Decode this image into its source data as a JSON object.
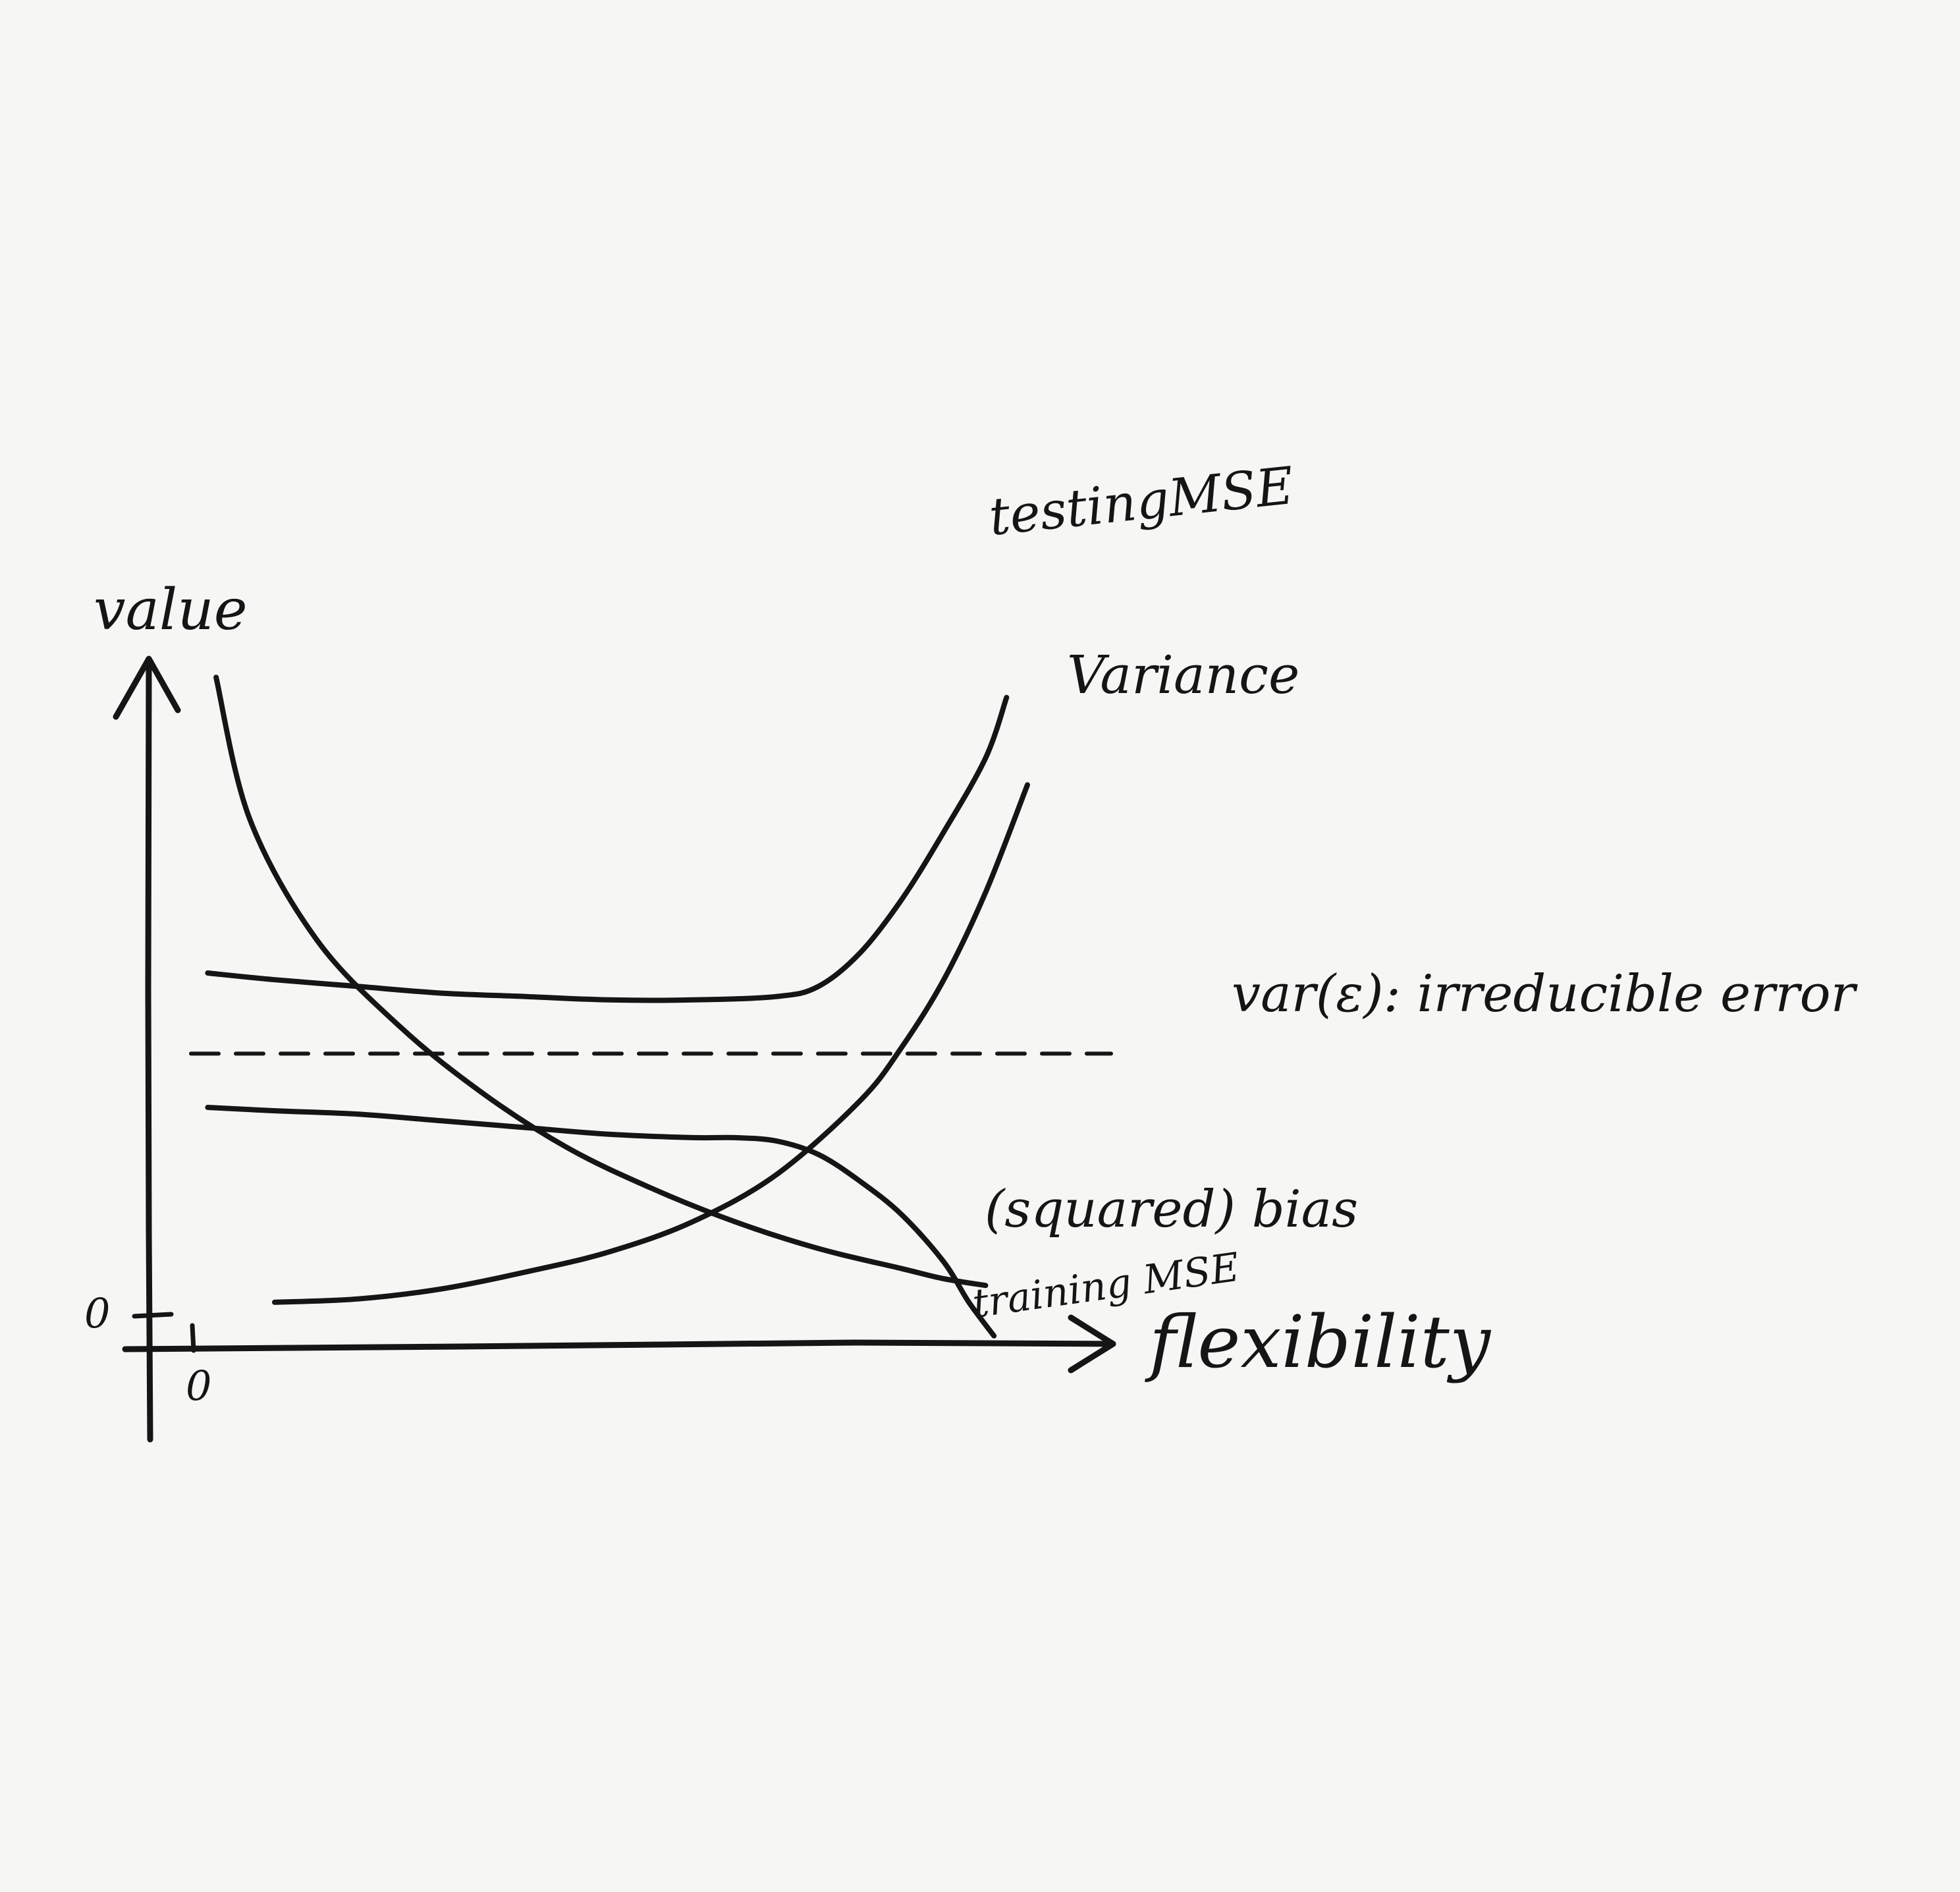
{
  "chart_data": {
    "type": "line",
    "title": "",
    "xlabel": "flexibility",
    "ylabel": "value",
    "x_tick_labels": [
      "0"
    ],
    "y_tick_labels": [
      "0"
    ],
    "xlim": [
      0,
      10
    ],
    "ylim": [
      0,
      10
    ],
    "grid": false,
    "legend": "none (curves labeled directly at right end)",
    "series": [
      {
        "name": "testing MSE",
        "label_text": "testingMSE",
        "x": [
          0.2,
          1.0,
          2.0,
          3.0,
          4.0,
          5.0,
          6.0,
          7.0,
          7.5,
          8.0,
          8.5,
          9.0,
          9.5,
          9.75
        ],
        "y": [
          5.5,
          5.4,
          5.3,
          5.2,
          5.15,
          5.1,
          5.1,
          5.15,
          5.3,
          5.8,
          6.6,
          7.6,
          8.7,
          9.6
        ]
      },
      {
        "name": "Variance",
        "label_text": "Variance",
        "x": [
          1.0,
          2.0,
          3.0,
          4.0,
          5.0,
          6.0,
          7.0,
          8.0,
          8.5,
          9.0,
          9.5,
          10.0
        ],
        "y": [
          0.6,
          0.65,
          0.8,
          1.05,
          1.35,
          1.8,
          2.5,
          3.6,
          4.4,
          5.4,
          6.7,
          8.3
        ]
      },
      {
        "name": "(squared) bias",
        "label_text": "(squared) bias",
        "x": [
          0.3,
          0.7,
          1.5,
          2.5,
          3.5,
          4.5,
          5.5,
          6.5,
          7.5,
          8.5,
          9.0,
          9.5
        ],
        "y": [
          9.9,
          7.8,
          6.0,
          4.7,
          3.7,
          2.9,
          2.3,
          1.8,
          1.4,
          1.1,
          0.95,
          0.85
        ]
      },
      {
        "name": "training MSE",
        "label_text": "training MSE",
        "x": [
          0.2,
          1.0,
          2.0,
          3.0,
          4.0,
          5.0,
          6.0,
          6.5,
          7.0,
          7.5,
          8.0,
          8.5,
          9.0,
          9.3,
          9.6
        ],
        "y": [
          3.5,
          3.45,
          3.4,
          3.3,
          3.2,
          3.1,
          3.05,
          3.05,
          3.0,
          2.8,
          2.4,
          1.9,
          1.2,
          0.6,
          0.1
        ]
      },
      {
        "name": "var(ε): irreducible error",
        "label_text": "var(ε): irreducible error",
        "style": "dashed",
        "x": [
          0,
          11.0
        ],
        "y": [
          4.3,
          4.3
        ]
      }
    ]
  },
  "colors": {
    "ink": "#151515",
    "paper": "#f6f6f4"
  }
}
